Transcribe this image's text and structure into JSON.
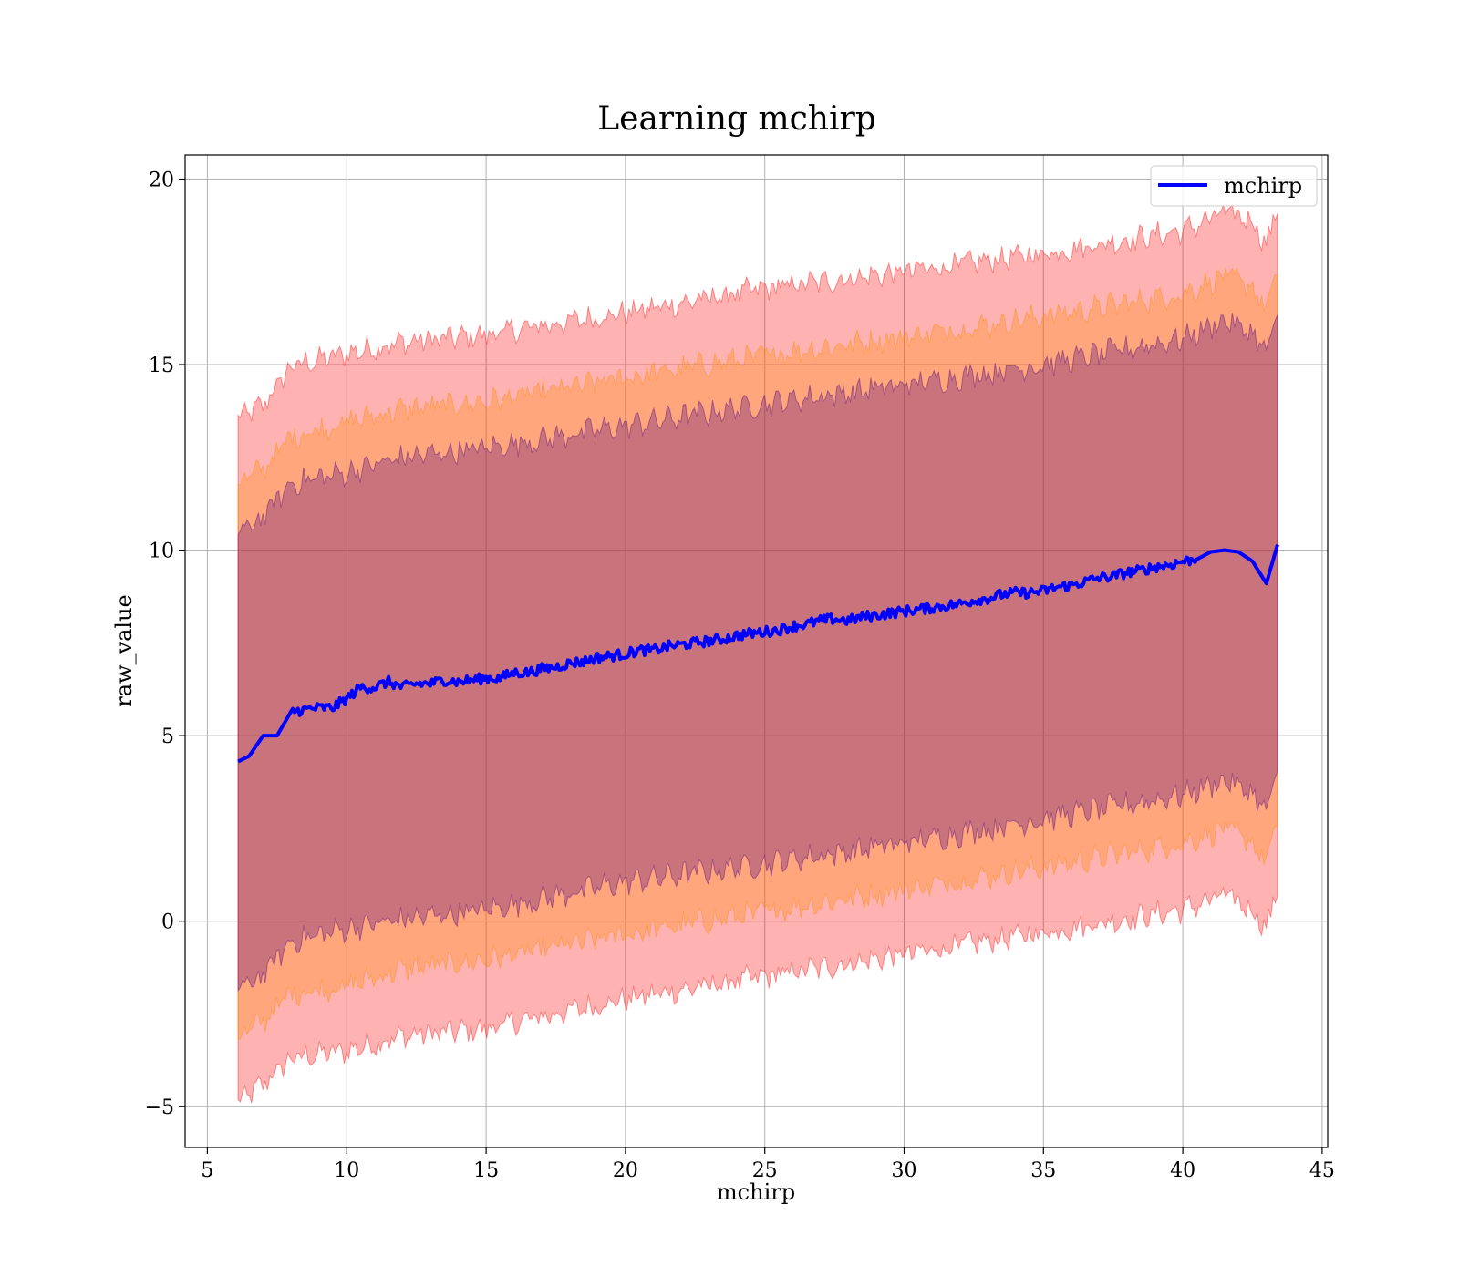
{
  "chart_data": {
    "type": "line",
    "title": "Learning mchirp",
    "xlabel": "mchirp",
    "ylabel": "raw_value",
    "xlim": [
      4.2,
      45.2
    ],
    "ylim": [
      -6.1,
      20.65
    ],
    "xticks": [
      5,
      10,
      15,
      20,
      25,
      30,
      35,
      40,
      45
    ],
    "yticks": [
      -5,
      0,
      5,
      10,
      15,
      20
    ],
    "grid": true,
    "legend": {
      "position": "top-right",
      "entries": [
        "mchirp"
      ]
    },
    "series": [
      {
        "name": "mchirp",
        "kind": "line",
        "color": "#0000ff",
        "x": [
          6.1,
          6.5,
          7.0,
          7.5,
          8.0,
          8.5,
          9.0,
          9.5,
          10.0,
          10.5,
          11.0,
          11.5,
          12.0,
          12.5,
          13.0,
          13.5,
          14.0,
          14.5,
          15.0,
          15.5,
          16.0,
          16.5,
          17.0,
          17.5,
          18.0,
          18.5,
          19.0,
          19.5,
          20.0,
          20.5,
          21.0,
          21.5,
          22.0,
          22.5,
          23.0,
          23.5,
          24.0,
          24.5,
          25.0,
          25.5,
          26.0,
          26.5,
          27.0,
          27.5,
          28.0,
          28.5,
          29.0,
          29.5,
          30.0,
          30.5,
          31.0,
          31.5,
          32.0,
          32.5,
          33.0,
          33.5,
          34.0,
          34.5,
          35.0,
          35.5,
          36.0,
          36.5,
          37.0,
          37.5,
          38.0,
          38.5,
          39.0,
          39.5,
          40.0,
          40.5,
          41.0,
          41.5,
          42.0,
          42.5,
          43.0,
          43.4
        ],
        "y": [
          4.3,
          4.45,
          5.0,
          5.0,
          5.65,
          5.7,
          5.75,
          5.75,
          6.0,
          6.3,
          6.3,
          6.45,
          6.3,
          6.4,
          6.4,
          6.5,
          6.45,
          6.5,
          6.55,
          6.55,
          6.7,
          6.7,
          6.8,
          6.85,
          6.95,
          7.0,
          7.1,
          7.15,
          7.2,
          7.3,
          7.3,
          7.4,
          7.45,
          7.5,
          7.55,
          7.6,
          7.7,
          7.75,
          7.8,
          7.85,
          7.95,
          8.0,
          8.1,
          8.15,
          8.1,
          8.2,
          8.25,
          8.3,
          8.35,
          8.4,
          8.45,
          8.5,
          8.55,
          8.65,
          8.7,
          8.8,
          8.85,
          8.85,
          8.9,
          9.0,
          9.05,
          9.15,
          9.25,
          9.3,
          9.4,
          9.45,
          9.55,
          9.6,
          9.7,
          9.75,
          9.95,
          10.0,
          9.95,
          9.7,
          9.1,
          10.15
        ]
      },
      {
        "name": "",
        "kind": "band",
        "color": "#ff0000",
        "opacity": 0.3,
        "x": [
          6.1,
          7.0,
          8.0,
          10.0,
          12.0,
          15.0,
          20.0,
          25.0,
          30.0,
          35.0,
          40.0,
          41.5,
          42.5,
          43.0,
          43.4
        ],
        "lower": [
          -4.9,
          -4.4,
          -3.7,
          -3.5,
          -3.1,
          -2.9,
          -2.1,
          -1.5,
          -0.9,
          -0.3,
          0.3,
          0.7,
          0.3,
          -0.2,
          0.9
        ],
        "upper": [
          13.55,
          13.9,
          14.95,
          15.3,
          15.6,
          15.8,
          16.4,
          17.05,
          17.5,
          18.0,
          18.6,
          19.1,
          18.9,
          18.2,
          19.3
        ]
      },
      {
        "name": "",
        "kind": "band",
        "color": "#ff8c00",
        "opacity": 0.3,
        "x": [
          6.1,
          7.0,
          8.0,
          10.0,
          12.0,
          15.0,
          20.0,
          25.0,
          30.0,
          35.0,
          40.0,
          41.5,
          42.5,
          43.0,
          43.4
        ],
        "lower": [
          -3.15,
          -2.7,
          -1.95,
          -1.75,
          -1.3,
          -1.05,
          -0.35,
          0.25,
          0.85,
          1.45,
          2.1,
          2.5,
          2.1,
          1.6,
          2.7
        ],
        "upper": [
          11.8,
          12.2,
          13.05,
          13.45,
          13.8,
          14.0,
          14.65,
          15.25,
          15.75,
          16.3,
          16.9,
          17.4,
          17.1,
          16.5,
          17.55
        ]
      },
      {
        "name": "",
        "kind": "band",
        "color": "#4b0082",
        "opacity": 0.3,
        "x": [
          6.1,
          7.0,
          8.0,
          10.0,
          12.0,
          15.0,
          20.0,
          25.0,
          30.0,
          35.0,
          40.0,
          41.5,
          42.5,
          43.0,
          43.4
        ],
        "lower": [
          -1.85,
          -1.45,
          -0.55,
          -0.2,
          0.05,
          0.3,
          1.05,
          1.55,
          2.1,
          2.75,
          3.4,
          3.8,
          3.45,
          2.95,
          4.0
        ],
        "upper": [
          10.45,
          10.9,
          11.8,
          12.1,
          12.5,
          12.75,
          13.35,
          13.95,
          14.45,
          15.0,
          15.7,
          16.2,
          15.85,
          15.35,
          16.3
        ]
      }
    ]
  }
}
